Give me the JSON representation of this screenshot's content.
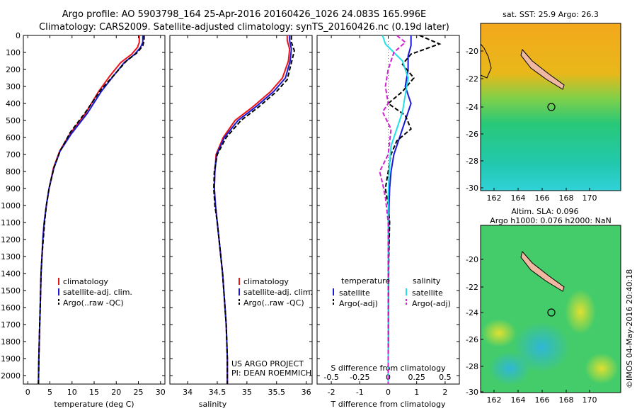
{
  "header": {
    "line1": "Argo profile: AO 5903798_164 25-Apr-2016 20160426_1026 24.083S 165.996E",
    "line2": "Climatology: CARS2009. Satellite-adjusted climatology: synTS_20160426.nc (0.19d later)"
  },
  "side_label": "©IMOS 04-May-2016 20:40:18",
  "project": {
    "line1": "US ARGO PROJECT",
    "line2": "PI: DEAN ROEMMICH"
  },
  "colors": {
    "climatology": "#e8151b",
    "satellite": "#1a1ad6",
    "argo": "#000000",
    "sal_satellite": "#22e0e8",
    "sal_argo": "#d020d0"
  },
  "maps": [
    {
      "title_line1": "sat. SST: 25.9 Argo: 26.3",
      "title_line2": "",
      "xticks": [
        "162",
        "164",
        "166",
        "168",
        "170"
      ],
      "yticks": [
        "-20",
        "-22",
        "-24",
        "-26",
        "-28",
        "-30"
      ]
    },
    {
      "title_line1": "Altim. SLA: 0.096",
      "title_line2": "Argo h1000: 0.076 h2000: NaN",
      "xticks": [
        "162",
        "164",
        "166",
        "168",
        "170"
      ],
      "yticks": [
        "-20",
        "-22",
        "-24",
        "-26",
        "-28",
        "-30"
      ]
    }
  ],
  "chart_data": [
    {
      "type": "line",
      "xlabel": "temperature (deg C)",
      "xlim": [
        -1,
        31
      ],
      "ylim": [
        2050,
        0
      ],
      "xticks": [
        "0",
        "5",
        "10",
        "15",
        "20",
        "25",
        "30"
      ],
      "yticks": [
        "0",
        "100",
        "200",
        "300",
        "400",
        "500",
        "600",
        "700",
        "800",
        "900",
        "1000",
        "1100",
        "1200",
        "1300",
        "1400",
        "1500",
        "1600",
        "1700",
        "1800",
        "1900",
        "2000"
      ],
      "legend": [
        "climatology",
        "satellite-adj. clim.",
        "Argo(..raw -QC)"
      ],
      "series": [
        {
          "name": "climatology",
          "x": [
            25.2,
            25.2,
            24.8,
            23.5,
            21,
            18.5,
            16,
            13,
            9.5,
            7.2,
            5.8,
            4.8,
            4.2,
            3.7,
            3.4,
            3.2,
            3,
            2.9,
            2.8,
            2.7,
            2.6,
            2.5,
            2.4
          ],
          "y": [
            0,
            40,
            70,
            110,
            160,
            240,
            330,
            460,
            580,
            680,
            780,
            900,
            1000,
            1100,
            1200,
            1300,
            1400,
            1500,
            1600,
            1700,
            1800,
            1900,
            2050
          ]
        },
        {
          "name": "satellite-adj. clim.",
          "x": [
            26,
            26,
            25.5,
            24.2,
            21.8,
            19.3,
            16.6,
            13.4,
            9.8,
            7.3,
            5.9,
            4.8,
            4.2,
            3.7,
            3.4,
            3.2,
            3,
            2.9,
            2.8,
            2.7,
            2.6,
            2.5,
            2.4
          ],
          "y": [
            0,
            40,
            70,
            110,
            160,
            240,
            330,
            460,
            580,
            680,
            780,
            900,
            1000,
            1100,
            1200,
            1300,
            1400,
            1500,
            1600,
            1700,
            1800,
            1900,
            2050
          ]
        },
        {
          "name": "Argo(..raw -QC)",
          "x": [
            26.3,
            26.3,
            26,
            24.8,
            22.3,
            19.6,
            16.5,
            13.1,
            9.6,
            7.3,
            5.9,
            4.8,
            4.2,
            3.8,
            3.5,
            3.2,
            3,
            2.9,
            2.8,
            2.7,
            2.6,
            2.5,
            2.4
          ],
          "y": [
            0,
            30,
            60,
            100,
            150,
            230,
            320,
            450,
            570,
            680,
            780,
            900,
            1000,
            1100,
            1200,
            1300,
            1400,
            1500,
            1600,
            1700,
            1800,
            1900,
            2050
          ]
        }
      ]
    },
    {
      "type": "line",
      "xlabel": "salinity",
      "xlim": [
        33.7,
        36.1
      ],
      "ylim": [
        2050,
        0
      ],
      "xticks": [
        "34",
        "34.5",
        "35",
        "35.5",
        "36"
      ],
      "legend": [
        "climatology",
        "satellite-adj. clim.",
        "Argo(..raw -QC)"
      ],
      "series": [
        {
          "name": "climatology",
          "x": [
            35.68,
            35.68,
            35.72,
            35.7,
            35.6,
            35.4,
            35.1,
            34.8,
            34.6,
            34.48,
            34.46,
            34.45,
            34.47,
            34.5,
            34.53,
            34.56,
            34.59,
            34.61,
            34.63,
            34.65,
            34.66,
            34.67,
            34.67
          ],
          "y": [
            0,
            30,
            80,
            150,
            250,
            330,
            420,
            500,
            600,
            700,
            800,
            900,
            1000,
            1100,
            1200,
            1300,
            1400,
            1500,
            1600,
            1700,
            1800,
            1900,
            2050
          ]
        },
        {
          "name": "satellite-adj. clim.",
          "x": [
            35.72,
            35.72,
            35.75,
            35.73,
            35.65,
            35.45,
            35.15,
            34.85,
            34.62,
            34.49,
            34.46,
            34.45,
            34.47,
            34.5,
            34.53,
            34.56,
            34.59,
            34.61,
            34.63,
            34.65,
            34.66,
            34.67,
            34.67
          ],
          "y": [
            0,
            30,
            80,
            150,
            250,
            330,
            420,
            500,
            600,
            700,
            800,
            900,
            1000,
            1100,
            1200,
            1300,
            1400,
            1500,
            1600,
            1700,
            1800,
            1900,
            2050
          ]
        },
        {
          "name": "Argo(..raw -QC)",
          "x": [
            35.75,
            35.75,
            35.8,
            35.75,
            35.68,
            35.5,
            35.2,
            34.9,
            34.65,
            34.5,
            34.45,
            34.44,
            34.46,
            34.5,
            34.53,
            34.56,
            34.59,
            34.61,
            34.63,
            34.65,
            34.66,
            34.67,
            34.67
          ],
          "y": [
            0,
            40,
            90,
            160,
            260,
            330,
            420,
            500,
            600,
            700,
            800,
            900,
            1000,
            1100,
            1200,
            1300,
            1400,
            1500,
            1600,
            1700,
            1800,
            1900,
            2050
          ]
        }
      ]
    },
    {
      "type": "line",
      "xlabel": "T difference from climatology",
      "xlabel_top": "S difference from climatology",
      "xlim": [
        -2.5,
        2.5
      ],
      "ylim": [
        2050,
        0
      ],
      "xticks": [
        "-2",
        "-1",
        "0",
        "1",
        "2"
      ],
      "xticks_top": [
        "-0.5",
        "-0.25",
        "0",
        "0.25",
        "0.5"
      ],
      "legend_headers": [
        "temperature",
        "salinity"
      ],
      "legend": [
        "satellite",
        "Argo(-adj)",
        "satellite",
        "Argo(-adj)"
      ],
      "series": [
        {
          "name": "satellite",
          "x": [
            0.8,
            0.8,
            0.7,
            0.7,
            0.6,
            0.8,
            0.6,
            0.4,
            0.2,
            0.1,
            0.05,
            0.03,
            0.02,
            0.02,
            0.01,
            0.01,
            0.01,
            0,
            0,
            0
          ],
          "y": [
            0,
            60,
            120,
            200,
            300,
            400,
            500,
            600,
            700,
            800,
            900,
            1000,
            1100,
            1200,
            1400,
            1600,
            1800,
            1900,
            2000,
            2050
          ]
        },
        {
          "name": "Argo(-adj)",
          "x": [
            1.1,
            1.8,
            0.8,
            0.5,
            0.9,
            0.5,
            0,
            0.6,
            0.8,
            0.3,
            0.1,
            0,
            -0.1,
            0,
            0.05,
            0.02,
            0.01,
            0,
            0,
            0
          ],
          "y": [
            0,
            50,
            110,
            170,
            250,
            330,
            400,
            470,
            550,
            620,
            700,
            800,
            900,
            1000,
            1100,
            1300,
            1500,
            1700,
            1900,
            2050
          ]
        },
        {
          "name": "satellite",
          "x": [
            -0.2,
            -0.1,
            0.2,
            0.5,
            0.7,
            0.6,
            0.5,
            0.3,
            0.1,
            0.05,
            0.02,
            0,
            0,
            0,
            0,
            0,
            0
          ],
          "y": [
            0,
            50,
            100,
            150,
            250,
            350,
            450,
            550,
            650,
            750,
            850,
            950,
            1100,
            1300,
            1500,
            1800,
            2050
          ]
        },
        {
          "name": "Argo(-adj)",
          "x": [
            0.3,
            0.6,
            0.2,
            0,
            -0.1,
            0,
            -0.2,
            0.1,
            0,
            -0.3,
            -0.2,
            -0.1,
            0,
            0,
            0
          ],
          "y": [
            0,
            40,
            100,
            200,
            300,
            400,
            450,
            550,
            700,
            800,
            870,
            950,
            1100,
            1500,
            2050
          ]
        }
      ]
    }
  ]
}
